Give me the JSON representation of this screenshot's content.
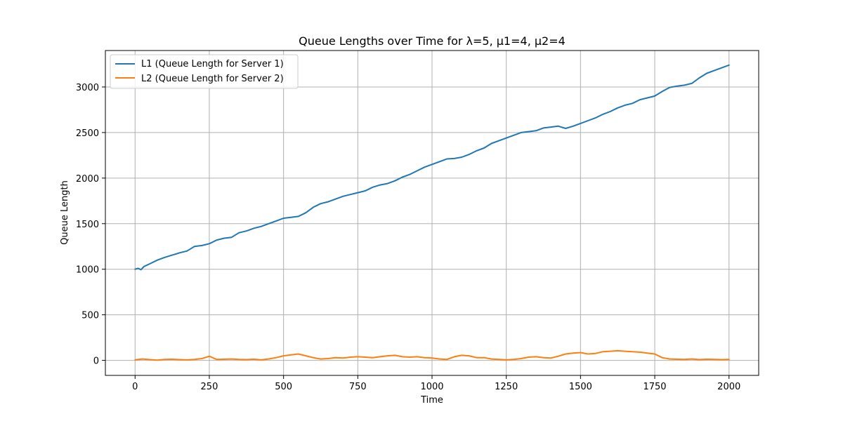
{
  "chart_data": {
    "type": "line",
    "title": "Queue Lengths over Time for λ=5, μ1=4, μ2=4",
    "xlabel": "Time",
    "ylabel": "Queue Length",
    "xlim": [
      -100,
      2100
    ],
    "ylim": [
      -165,
      3400
    ],
    "xticks": [
      0,
      250,
      500,
      750,
      1000,
      1250,
      1500,
      1750,
      2000
    ],
    "yticks": [
      0,
      500,
      1000,
      1500,
      2000,
      2500,
      3000
    ],
    "grid": true,
    "legend_position": "top-left",
    "series": [
      {
        "name": "L1 (Queue Length for Server 1)",
        "color": "#1f77b4",
        "x": [
          0,
          10,
          20,
          30,
          50,
          75,
          100,
          125,
          150,
          175,
          200,
          225,
          250,
          275,
          300,
          325,
          350,
          375,
          400,
          425,
          450,
          475,
          500,
          525,
          550,
          575,
          600,
          625,
          650,
          675,
          700,
          725,
          750,
          775,
          800,
          825,
          850,
          875,
          900,
          925,
          950,
          975,
          1000,
          1025,
          1050,
          1075,
          1100,
          1125,
          1150,
          1175,
          1200,
          1225,
          1250,
          1275,
          1300,
          1325,
          1350,
          1375,
          1400,
          1425,
          1450,
          1475,
          1500,
          1525,
          1550,
          1575,
          1600,
          1625,
          1650,
          1675,
          1700,
          1725,
          1750,
          1775,
          1800,
          1825,
          1850,
          1875,
          1900,
          1925,
          1950,
          1975,
          2000
        ],
        "y": [
          1000,
          1010,
          995,
          1030,
          1060,
          1100,
          1130,
          1155,
          1180,
          1200,
          1250,
          1260,
          1280,
          1320,
          1340,
          1350,
          1400,
          1420,
          1450,
          1470,
          1500,
          1530,
          1560,
          1570,
          1580,
          1620,
          1680,
          1720,
          1740,
          1770,
          1800,
          1820,
          1840,
          1860,
          1900,
          1925,
          1940,
          1970,
          2010,
          2040,
          2080,
          2120,
          2150,
          2180,
          2210,
          2215,
          2230,
          2260,
          2300,
          2330,
          2380,
          2410,
          2440,
          2470,
          2500,
          2510,
          2520,
          2550,
          2560,
          2570,
          2545,
          2570,
          2600,
          2630,
          2660,
          2700,
          2730,
          2770,
          2800,
          2820,
          2860,
          2880,
          2900,
          2950,
          2995,
          3010,
          3020,
          3040,
          3100,
          3150,
          3180,
          3210,
          3240
        ]
      },
      {
        "name": "L2 (Queue Length for Server 2)",
        "color": "#ff7f0e",
        "x": [
          0,
          25,
          50,
          75,
          100,
          125,
          150,
          175,
          200,
          225,
          250,
          275,
          300,
          325,
          350,
          375,
          400,
          425,
          450,
          475,
          500,
          525,
          550,
          575,
          600,
          625,
          650,
          675,
          700,
          725,
          750,
          775,
          800,
          825,
          850,
          875,
          900,
          925,
          950,
          975,
          1000,
          1025,
          1050,
          1075,
          1100,
          1125,
          1150,
          1175,
          1200,
          1225,
          1250,
          1275,
          1300,
          1325,
          1350,
          1375,
          1400,
          1425,
          1450,
          1475,
          1500,
          1525,
          1550,
          1575,
          1600,
          1625,
          1650,
          1675,
          1700,
          1725,
          1750,
          1775,
          1800,
          1825,
          1850,
          1875,
          1900,
          1925,
          1950,
          1975,
          2000
        ],
        "y": [
          5,
          15,
          8,
          3,
          10,
          12,
          8,
          5,
          10,
          20,
          45,
          10,
          12,
          15,
          10,
          8,
          12,
          5,
          15,
          30,
          50,
          60,
          70,
          50,
          30,
          15,
          20,
          30,
          25,
          35,
          40,
          35,
          30,
          40,
          50,
          55,
          40,
          35,
          40,
          30,
          25,
          15,
          10,
          40,
          55,
          50,
          30,
          30,
          15,
          10,
          5,
          10,
          20,
          35,
          40,
          30,
          25,
          45,
          70,
          80,
          85,
          70,
          75,
          95,
          100,
          105,
          100,
          95,
          90,
          80,
          70,
          30,
          15,
          12,
          10,
          15,
          8,
          12,
          10,
          8,
          10
        ]
      }
    ]
  }
}
